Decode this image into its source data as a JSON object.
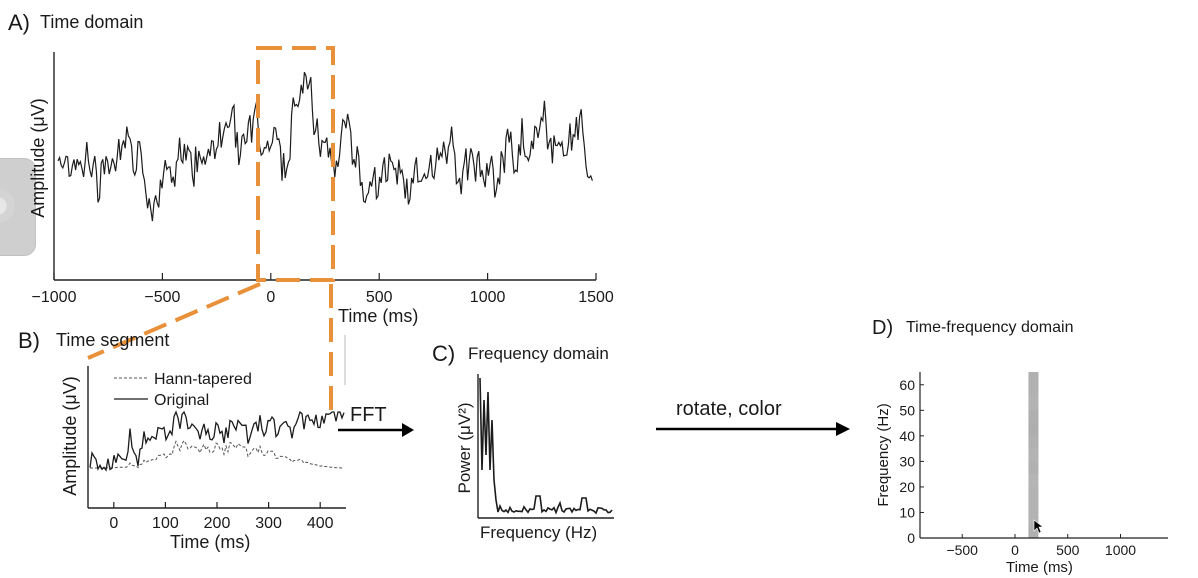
{
  "panels": {
    "a": {
      "letter": "A)",
      "title": "Time domain"
    },
    "b": {
      "letter": "B)",
      "title": "Time segment"
    },
    "c": {
      "letter": "C)",
      "title": "Frequency domain"
    },
    "d": {
      "letter": "D)",
      "title": "Time-frequency domain"
    }
  },
  "arrows": {
    "fft": "FFT",
    "rotate": "rotate, color"
  },
  "colors": {
    "highlight": "#e8913a",
    "trace": "#1c1c1c",
    "tf_band": "#b9b9b9"
  },
  "icons": {
    "side_tab": "circle-tab-icon",
    "cursor": "mouse-pointer-icon"
  },
  "chart_data": [
    {
      "id": "time-domain",
      "type": "line",
      "xlabel": "Time (ms)",
      "ylabel": "Amplitude (μV)",
      "xlim": [
        -1000,
        1500
      ],
      "xticks": [
        -1000,
        -500,
        0,
        500,
        1000,
        1500
      ],
      "xtick_labels": [
        "−1000",
        "−500",
        "0",
        "500",
        "1000",
        "1500"
      ],
      "highlight_window_ms": [
        0,
        350
      ],
      "series": [
        {
          "x": [
            -1000,
            1500
          ]
        }
      ]
    },
    {
      "id": "time-segment",
      "type": "line",
      "xlabel": "Time (ms)",
      "ylabel": "Amplitude (μV)",
      "xlim": [
        -50,
        450
      ],
      "xticks": [
        0,
        100,
        200,
        300,
        400
      ],
      "xtick_labels": [
        "0",
        "100",
        "200",
        "300",
        "400"
      ],
      "legend_position": "top-left",
      "series": [
        {
          "name": "Hann-tapered",
          "style": "dashed"
        },
        {
          "name": "Original",
          "style": "solid"
        }
      ]
    },
    {
      "id": "frequency-domain",
      "type": "line",
      "xlabel": "Frequency (Hz)",
      "ylabel": "Power (μV²)",
      "xticks": [],
      "yticks": []
    },
    {
      "id": "time-frequency",
      "type": "heatmap",
      "xlabel": "Time (ms)",
      "ylabel": "Frequency (Hz)",
      "xlim": [
        -900,
        1450
      ],
      "ylim": [
        0,
        65
      ],
      "xticks": [
        -500,
        0,
        500,
        1000
      ],
      "xtick_labels": [
        "−500",
        "0",
        "500",
        "1000"
      ],
      "yticks": [
        0,
        10,
        20,
        30,
        40,
        50,
        60
      ],
      "ytick_labels": [
        "0",
        "10",
        "20",
        "30",
        "40",
        "50",
        "60"
      ],
      "band_time_ms": [
        175
      ],
      "band_freq_hz": [
        0,
        65
      ]
    }
  ]
}
